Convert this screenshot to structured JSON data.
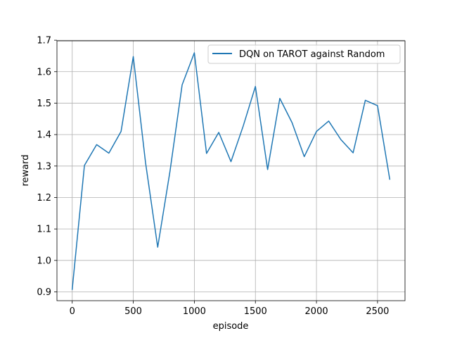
{
  "chart_data": {
    "type": "line",
    "title": "",
    "xlabel": "episode",
    "ylabel": "reward",
    "xlim": [
      -125,
      2725
    ],
    "ylim": [
      0.872,
      1.698
    ],
    "xticks": [
      0,
      500,
      1000,
      1500,
      2000,
      2500
    ],
    "xtick_labels": [
      "0",
      "500",
      "1000",
      "1500",
      "2000",
      "2500"
    ],
    "yticks": [
      0.9,
      1.0,
      1.1,
      1.2,
      1.3,
      1.4,
      1.5,
      1.6,
      1.7
    ],
    "ytick_labels": [
      "0.9",
      "1.0",
      "1.1",
      "1.2",
      "1.3",
      "1.4",
      "1.5",
      "1.6",
      "1.7"
    ],
    "grid": true,
    "legend_position": "top-right",
    "series": [
      {
        "name": "DQN on TAROT against Random",
        "color": "#1f77b4",
        "x": [
          0,
          100,
          200,
          300,
          400,
          500,
          600,
          700,
          800,
          900,
          1000,
          1100,
          1200,
          1300,
          1400,
          1500,
          1600,
          1700,
          1800,
          1900,
          2000,
          2100,
          2200,
          2300,
          2400,
          2500,
          2600
        ],
        "y": [
          0.908,
          1.302,
          1.368,
          1.341,
          1.41,
          1.648,
          1.312,
          1.042,
          1.282,
          1.558,
          1.66,
          1.34,
          1.407,
          1.314,
          1.427,
          1.553,
          1.289,
          1.515,
          1.438,
          1.33,
          1.41,
          1.443,
          1.384,
          1.342,
          1.509,
          1.492,
          1.258
        ]
      }
    ]
  }
}
